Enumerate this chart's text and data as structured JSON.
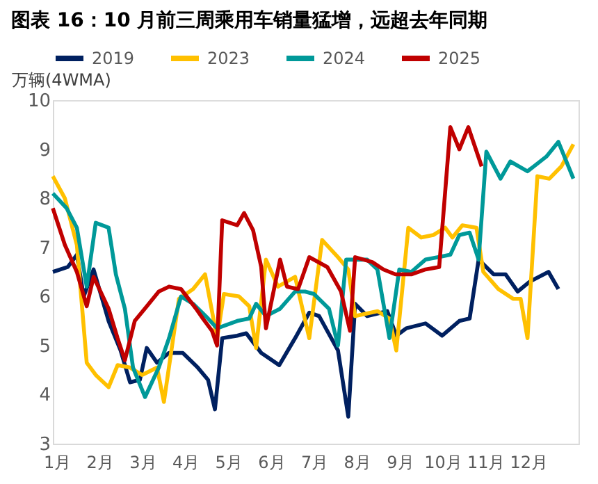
{
  "chart_data": {
    "type": "line",
    "title": "图表 16：10 月前三周乘用车销量猛增，远超去年同期",
    "ylabel": "万辆(4WMA)",
    "xlim": [
      0.91,
      13.17
    ],
    "xticks": [
      {
        "value": 1,
        "label": "1月"
      },
      {
        "value": 2,
        "label": "2月"
      },
      {
        "value": 3,
        "label": "3月"
      },
      {
        "value": 4,
        "label": "4月"
      },
      {
        "value": 5,
        "label": "5月"
      },
      {
        "value": 6,
        "label": "6月"
      },
      {
        "value": 7,
        "label": "7月"
      },
      {
        "value": 8,
        "label": "8月"
      },
      {
        "value": 9,
        "label": "9月"
      },
      {
        "value": 10,
        "label": "10月"
      },
      {
        "value": 11,
        "label": "11月"
      },
      {
        "value": 12,
        "label": "12月"
      }
    ],
    "ylim": [
      3,
      10
    ],
    "yticks": [
      3,
      4,
      5,
      6,
      7,
      8,
      9,
      10
    ],
    "grid": false,
    "legend": "top",
    "marker": "none",
    "line_style": "solid",
    "series": [
      {
        "name": "2019",
        "color": "#002060",
        "x": [
          0.91,
          1.26,
          1.47,
          1.63,
          1.86,
          2.21,
          2.49,
          2.71,
          2.94,
          3.1,
          3.34,
          3.62,
          3.94,
          4.29,
          4.53,
          4.69,
          4.86,
          5.21,
          5.42,
          5.77,
          6.19,
          6.56,
          6.89,
          7.12,
          7.56,
          7.8,
          7.96,
          8.24,
          8.71,
          8.92,
          9.15,
          9.6,
          9.99,
          10.39,
          10.63,
          10.84,
          11.19,
          11.47,
          11.75,
          12.03,
          12.47,
          12.7
        ],
        "values": [
          6.5,
          6.6,
          6.85,
          6.0,
          6.55,
          5.5,
          4.9,
          4.25,
          4.3,
          4.95,
          4.65,
          4.85,
          4.85,
          4.55,
          4.3,
          3.7,
          5.15,
          5.2,
          5.25,
          4.85,
          4.6,
          5.15,
          5.67,
          5.6,
          4.9,
          3.55,
          5.85,
          5.6,
          5.7,
          5.2,
          5.35,
          5.45,
          5.2,
          5.5,
          5.55,
          6.75,
          6.45,
          6.45,
          6.1,
          6.3,
          6.5,
          6.15
        ]
      },
      {
        "name": "2023",
        "color": "#ffc000",
        "x": [
          0.91,
          1.19,
          1.47,
          1.7,
          1.91,
          2.21,
          2.42,
          2.71,
          2.99,
          3.34,
          3.5,
          3.85,
          4.18,
          4.46,
          4.74,
          4.9,
          5.25,
          5.49,
          5.65,
          5.88,
          6.16,
          6.56,
          6.89,
          7.19,
          7.56,
          7.8,
          7.96,
          8.48,
          8.76,
          8.92,
          9.2,
          9.5,
          9.78,
          10.06,
          10.23,
          10.46,
          10.79,
          10.95,
          11.3,
          11.65,
          11.82,
          11.98,
          12.21,
          12.49,
          12.77,
          13.05
        ],
        "values": [
          8.45,
          8.0,
          7.05,
          4.65,
          4.4,
          4.15,
          4.6,
          4.55,
          4.4,
          4.55,
          3.85,
          5.95,
          6.15,
          6.45,
          5.15,
          6.05,
          6.0,
          5.8,
          4.95,
          6.75,
          6.2,
          6.4,
          5.15,
          7.15,
          6.8,
          6.55,
          5.6,
          5.7,
          5.55,
          4.9,
          7.4,
          7.2,
          7.25,
          7.4,
          7.2,
          7.45,
          7.4,
          6.5,
          6.15,
          5.95,
          5.95,
          5.15,
          8.45,
          8.4,
          8.65,
          9.1
        ]
      },
      {
        "name": "2024",
        "color": "#009999",
        "x": [
          0.91,
          1.23,
          1.47,
          1.7,
          1.91,
          2.21,
          2.38,
          2.59,
          2.78,
          3.06,
          3.38,
          3.62,
          3.9,
          4.18,
          4.53,
          4.74,
          5.21,
          5.49,
          5.65,
          5.88,
          6.21,
          6.56,
          6.79,
          7.0,
          7.35,
          7.56,
          7.75,
          8.24,
          8.48,
          8.76,
          8.99,
          9.27,
          9.6,
          9.9,
          10.18,
          10.39,
          10.63,
          10.84,
          11.02,
          11.35,
          11.58,
          11.98,
          12.42,
          12.7,
          13.05
        ],
        "values": [
          8.1,
          7.8,
          7.4,
          6.2,
          7.5,
          7.4,
          6.45,
          5.75,
          4.55,
          3.95,
          4.55,
          5.15,
          6.0,
          5.85,
          5.55,
          5.35,
          5.5,
          5.55,
          5.85,
          5.6,
          5.75,
          6.1,
          6.1,
          6.05,
          5.75,
          5.0,
          6.75,
          6.75,
          6.55,
          5.15,
          6.55,
          6.5,
          6.75,
          6.8,
          6.85,
          7.25,
          7.3,
          6.75,
          8.95,
          8.4,
          8.75,
          8.55,
          8.85,
          9.15,
          8.4
        ]
      },
      {
        "name": "2025",
        "color": "#c00000",
        "x": [
          0.91,
          1.19,
          1.47,
          1.7,
          1.86,
          2.21,
          2.42,
          2.59,
          2.82,
          3.1,
          3.38,
          3.62,
          3.9,
          4.25,
          4.41,
          4.62,
          4.74,
          4.86,
          5.21,
          5.37,
          5.58,
          5.77,
          5.88,
          6.21,
          6.37,
          6.63,
          6.89,
          7.31,
          7.63,
          7.84,
          7.96,
          8.36,
          8.62,
          8.9,
          9.27,
          9.6,
          9.92,
          10.18,
          10.39,
          10.6,
          10.91
        ],
        "values": [
          7.8,
          7.05,
          6.5,
          5.8,
          6.4,
          5.75,
          5.15,
          4.7,
          5.5,
          5.8,
          6.1,
          6.2,
          6.15,
          5.75,
          5.55,
          5.3,
          5.0,
          7.55,
          7.45,
          7.7,
          7.35,
          6.6,
          5.35,
          6.75,
          6.2,
          6.15,
          6.8,
          6.6,
          6.1,
          5.3,
          6.8,
          6.7,
          6.55,
          6.45,
          6.45,
          6.55,
          6.6,
          9.45,
          9.0,
          9.45,
          8.65
        ]
      }
    ]
  }
}
